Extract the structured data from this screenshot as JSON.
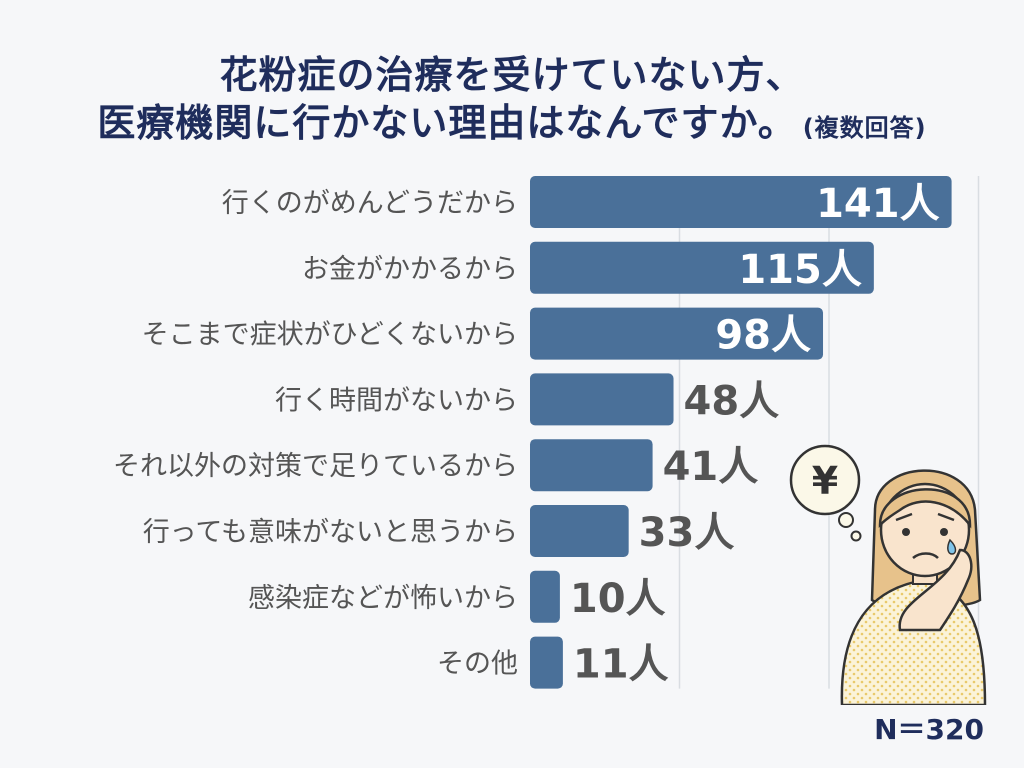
{
  "title": {
    "line1": "花粉症の治療を受けていない方、",
    "line2": "医療機関に行かない理由はなんですか。",
    "note": "(複数回答)"
  },
  "sample_size": "N＝320",
  "colors": {
    "bar": "#4a7099",
    "title": "#1f2d5c",
    "label": "#555555",
    "value_outside": "#555555",
    "value_inside": "#ffffff",
    "grid": "#d9dde2"
  },
  "illustration": {
    "icon": "worried-woman-illustration",
    "bubble_text": "¥"
  },
  "chart_data": {
    "type": "bar",
    "orientation": "horizontal",
    "categories": [
      "行くのがめんどうだから",
      "お金がかかるから",
      "そこまで症状がひどくないから",
      "行く時間がないから",
      "それ以外の対策で足りているから",
      "行っても意味がないと思うから",
      "感染症などが怖いから",
      "その他"
    ],
    "values": [
      141,
      115,
      98,
      48,
      41,
      33,
      10,
      11
    ],
    "value_labels": [
      "141人",
      "115人",
      "98人",
      "48人",
      "41人",
      "33人",
      "10人",
      "11人"
    ],
    "unit": "人",
    "xlim": [
      0,
      150
    ],
    "grid": true
  }
}
